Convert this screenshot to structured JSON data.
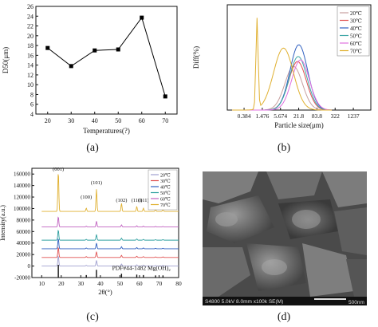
{
  "panels": {
    "a": {
      "label": "(a)"
    },
    "b": {
      "label": "(b)"
    },
    "c": {
      "label": "(c)"
    },
    "d": {
      "label": "(d)"
    }
  },
  "chart_data": [
    {
      "id": "a",
      "type": "line",
      "xlabel": "Temperatures(?)",
      "ylabel": "D50(μm)",
      "x": [
        20,
        30,
        40,
        50,
        60,
        70
      ],
      "y": [
        17.5,
        13.8,
        17.0,
        17.2,
        23.7,
        7.6
      ],
      "xlim": [
        15,
        75
      ],
      "ylim": [
        4,
        26
      ],
      "xticks": [
        "20",
        "30",
        "40",
        "50",
        "60",
        "70"
      ],
      "yticks": [
        "4",
        "6",
        "8",
        "10",
        "12",
        "14",
        "16",
        "18",
        "20",
        "22",
        "24",
        "26"
      ],
      "color": "#000000"
    },
    {
      "id": "b",
      "type": "line",
      "xlabel": "Particle size(μm)",
      "ylabel": "Diff(%)",
      "x_scale": "log",
      "xticks": [
        "0.384",
        "1.476",
        "5.674",
        "21.8",
        "83.8",
        "322",
        "1237"
      ],
      "legend_position": "top-right",
      "series": [
        {
          "name": "20℃",
          "color": "#c8a0a0",
          "peak_x": 15,
          "peak_y": 2.6
        },
        {
          "name": "30℃",
          "color": "#e05050",
          "peak_x": 20,
          "peak_y": 2.9
        },
        {
          "name": "40℃",
          "color": "#3060c0",
          "peak_x": 22,
          "peak_y": 3.9
        },
        {
          "name": "50℃",
          "color": "#40a8a8",
          "peak_x": 21,
          "peak_y": 3.2
        },
        {
          "name": "60℃",
          "color": "#e070e0",
          "peak_x": 25,
          "peak_y": 3.0
        },
        {
          "name": "70℃",
          "color": "#e0b030",
          "peak_x": 1.0,
          "peak_y": 5.4
        }
      ]
    },
    {
      "id": "c",
      "type": "line",
      "xlabel": "2θ(°)",
      "ylabel": "Intensity(a.u.)",
      "xlim": [
        5,
        80
      ],
      "ylim": [
        -20000,
        170000
      ],
      "xticks": [
        "10",
        "20",
        "30",
        "40",
        "50",
        "60",
        "70",
        "80"
      ],
      "yticks": [
        "-20000",
        "0",
        "20000",
        "40000",
        "60000",
        "80000",
        "100000",
        "120000",
        "140000",
        "160000"
      ],
      "peaks": [
        {
          "label": "(001)",
          "x": 18.5
        },
        {
          "label": "(100)",
          "x": 32.8
        },
        {
          "label": "(101)",
          "x": 38.0
        },
        {
          "label": "(102)",
          "x": 50.8
        },
        {
          "label": "(110)",
          "x": 58.6
        },
        {
          "label": "(111)",
          "x": 62.0
        },
        {
          "label": "(103)",
          "x": 68.2
        },
        {
          "label": "(201)",
          "x": 72.0
        }
      ],
      "reference_label": "PDF#44-1482 Mg(OH)₂",
      "series": [
        {
          "name": "20℃",
          "color": "#a0a0d0",
          "offset": 0
        },
        {
          "name": "30℃",
          "color": "#e05050",
          "offset": 15000
        },
        {
          "name": "40℃",
          "color": "#3060c0",
          "offset": 30000
        },
        {
          "name": "50℃",
          "color": "#30a0a0",
          "offset": 45000
        },
        {
          "name": "60℃",
          "color": "#c060c0",
          "offset": 68000
        },
        {
          "name": "70℃",
          "color": "#e0b030",
          "offset": 95000
        }
      ],
      "legend_position": "top-right"
    }
  ],
  "sem": {
    "info_left": "S4800 5.0kV 8.0mm x100k SE(M)",
    "scale_label": "500nm"
  }
}
